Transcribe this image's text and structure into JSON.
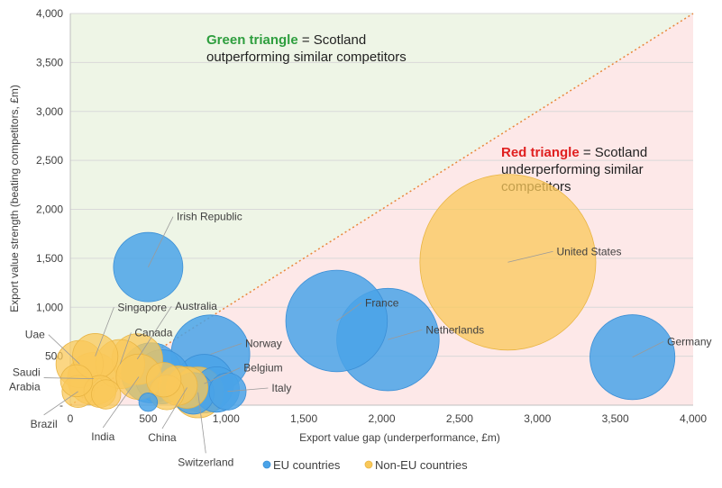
{
  "colors": {
    "eu": "#4aa3e8",
    "eu_stroke": "#3b8fd6",
    "non_eu": "#f9c85a",
    "non_eu_stroke": "#e9b544",
    "green_region": "#eef5e6",
    "red_region": "#fde8e8",
    "diagonal": "#e8873c",
    "green_word": "#2e9e3e",
    "red_word": "#e02020",
    "leader": "#9a9a9a"
  },
  "chart_data": {
    "type": "scatter",
    "xlabel": "Export value gap (underperformance, £m)",
    "ylabel": "Export value strength (beating competitors, £m)",
    "xlim": [
      0,
      4000
    ],
    "ylim": [
      0,
      4000
    ],
    "x_ticks": [
      "0",
      "500",
      "1,000",
      "1,500",
      "2,000",
      "2,500",
      "3,000",
      "3,500",
      "4,000"
    ],
    "x_tick_values": [
      0,
      500,
      1000,
      1500,
      2000,
      2500,
      3000,
      3500,
      4000
    ],
    "y_ticks": [
      "-",
      "500",
      "1,000",
      "1,500",
      "2,000",
      "2,500",
      "3,000",
      "3,500",
      "4,000"
    ],
    "y_tick_values": [
      0,
      500,
      1000,
      1500,
      2000,
      2500,
      3000,
      3500,
      4000
    ],
    "grid": "horizontal",
    "legend_position": "bottom",
    "legend": [
      {
        "name": "EU countries",
        "group": "eu"
      },
      {
        "name": "Non-EU countries",
        "group": "non_eu"
      }
    ],
    "annotations": {
      "green": {
        "bold": "Green triangle",
        "rest": " = Scotland",
        "line2": "outperforming similar competitors"
      },
      "red": {
        "bold": "Red triangle",
        "rest": " = Scotland",
        "line2": "underperforming similar",
        "line3": "competitors"
      }
    },
    "points": [
      {
        "name": "United States",
        "group": "non_eu",
        "x": 2810,
        "y": 1460,
        "size": 1800,
        "label_x": 3100,
        "label_y": 1570,
        "leader": true
      },
      {
        "name": "Germany",
        "group": "eu",
        "x": 3610,
        "y": 490,
        "size": 420,
        "label_x": 3810,
        "label_y": 650,
        "leader": true
      },
      {
        "name": "Netherlands",
        "group": "eu",
        "x": 2040,
        "y": 670,
        "size": 610,
        "label_x": 2260,
        "label_y": 770,
        "leader": true
      },
      {
        "name": "France",
        "group": "eu",
        "x": 1710,
        "y": 860,
        "size": 600,
        "label_x": 1870,
        "label_y": 1045,
        "leader": true
      },
      {
        "name": "Irish Republic",
        "group": "eu",
        "x": 500,
        "y": 1410,
        "size": 280,
        "label_x": 660,
        "label_y": 1925,
        "leader": true
      },
      {
        "name": "Norway",
        "group": "eu",
        "x": 900,
        "y": 520,
        "size": 360,
        "label_x": 1100,
        "label_y": 630,
        "leader": true
      },
      {
        "name": "Belgium",
        "group": "eu",
        "x": 860,
        "y": 220,
        "size": 200,
        "label_x": 1090,
        "label_y": 380,
        "leader": true
      },
      {
        "name": "Italy",
        "group": "eu",
        "x": 1010,
        "y": 140,
        "size": 80,
        "label_x": 1270,
        "label_y": 175,
        "leader": true
      },
      {
        "name": "",
        "group": "eu",
        "x": 520,
        "y": 330,
        "size": 210
      },
      {
        "name": "",
        "group": "eu",
        "x": 590,
        "y": 290,
        "size": 170
      },
      {
        "name": "",
        "group": "eu",
        "x": 940,
        "y": 160,
        "size": 120
      },
      {
        "name": "",
        "group": "eu",
        "x": 790,
        "y": 120,
        "size": 100
      },
      {
        "name": "",
        "group": "eu",
        "x": 500,
        "y": 30,
        "size": 20
      },
      {
        "name": "Switzerland",
        "group": "non_eu",
        "x": 820,
        "y": 130,
        "size": 150,
        "label_x": 870,
        "label_y": -490,
        "leader": true
      },
      {
        "name": "China",
        "group": "non_eu",
        "x": 750,
        "y": 180,
        "size": 100,
        "label_x": 590,
        "label_y": -240,
        "leader": true
      },
      {
        "name": "India",
        "group": "non_eu",
        "x": 440,
        "y": 290,
        "size": 120,
        "label_x": 210,
        "label_y": -230,
        "leader": true
      },
      {
        "name": "Australia",
        "group": "non_eu",
        "x": 430,
        "y": 470,
        "size": 150,
        "label_x": 650,
        "label_y": 1010,
        "leader": true
      },
      {
        "name": "Canada",
        "group": "non_eu",
        "x": 320,
        "y": 420,
        "size": 140,
        "label_x": 390,
        "label_y": 740,
        "leader": true
      },
      {
        "name": "Singapore",
        "group": "non_eu",
        "x": 160,
        "y": 500,
        "size": 120,
        "label_x": 280,
        "label_y": 1000,
        "leader": true
      },
      {
        "name": "Uae",
        "group": "non_eu",
        "x": 60,
        "y": 420,
        "size": 130,
        "label_x": -140,
        "label_y": 720,
        "leader": true
      },
      {
        "name": "Saudi Arabia",
        "group": "non_eu",
        "x": 150,
        "y": 270,
        "size": 160,
        "label_x": -170,
        "label_y": 280,
        "leader": true
      },
      {
        "name": "Brazil",
        "group": "non_eu",
        "x": 50,
        "y": 140,
        "size": 60,
        "label_x": -170,
        "label_y": -100,
        "leader": true
      },
      {
        "name": "",
        "group": "non_eu",
        "x": 230,
        "y": 110,
        "size": 50
      },
      {
        "name": "",
        "group": "non_eu",
        "x": 190,
        "y": 140,
        "size": 60
      },
      {
        "name": "",
        "group": "non_eu",
        "x": 620,
        "y": 130,
        "size": 70
      },
      {
        "name": "",
        "group": "non_eu",
        "x": 690,
        "y": 200,
        "size": 90
      },
      {
        "name": "",
        "group": "non_eu",
        "x": 40,
        "y": 250,
        "size": 60
      },
      {
        "name": "",
        "group": "non_eu",
        "x": 600,
        "y": 260,
        "size": 70
      }
    ]
  }
}
